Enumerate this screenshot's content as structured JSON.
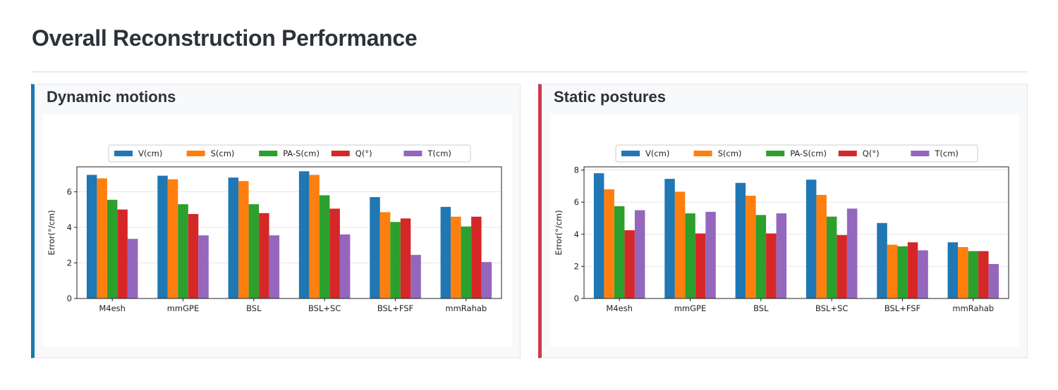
{
  "page": {
    "title": "Overall Reconstruction Performance"
  },
  "panels": [
    {
      "title": "Dynamic motions"
    },
    {
      "title": "Static postures"
    }
  ],
  "chart_data": [
    {
      "type": "bar",
      "categories": [
        "M4esh",
        "mmGPE",
        "BSL",
        "BSL+SC",
        "BSL+FSF",
        "mmRahab"
      ],
      "series": [
        {
          "name": "V(cm)",
          "color": "#1f77b4",
          "values": [
            6.95,
            6.9,
            6.8,
            7.15,
            5.7,
            5.15
          ]
        },
        {
          "name": "S(cm)",
          "color": "#ff7f0e",
          "values": [
            6.75,
            6.7,
            6.6,
            6.95,
            4.85,
            4.6
          ]
        },
        {
          "name": "PA-S(cm)",
          "color": "#2ca02c",
          "values": [
            5.55,
            5.3,
            5.3,
            5.8,
            4.3,
            4.05
          ]
        },
        {
          "name": "Q(°)",
          "color": "#d62728",
          "values": [
            5.0,
            4.75,
            4.8,
            5.05,
            4.5,
            4.6
          ]
        },
        {
          "name": "T(cm)",
          "color": "#9467bd",
          "values": [
            3.35,
            3.55,
            3.55,
            3.6,
            2.45,
            2.05
          ]
        }
      ],
      "ylabel": "Error(°/cm)",
      "xlabel": "",
      "ylim": [
        0,
        7.4
      ],
      "yticks": [
        0,
        2,
        4,
        6
      ],
      "grid": "horizontal",
      "legend": "top-center"
    },
    {
      "type": "bar",
      "categories": [
        "M4esh",
        "mmGPE",
        "BSL",
        "BSL+SC",
        "BSL+FSF",
        "mmRahab"
      ],
      "series": [
        {
          "name": "V(cm)",
          "color": "#1f77b4",
          "values": [
            7.8,
            7.45,
            7.2,
            7.4,
            4.7,
            3.5
          ]
        },
        {
          "name": "S(cm)",
          "color": "#ff7f0e",
          "values": [
            6.8,
            6.65,
            6.4,
            6.45,
            3.35,
            3.2
          ]
        },
        {
          "name": "PA-S(cm)",
          "color": "#2ca02c",
          "values": [
            5.75,
            5.3,
            5.2,
            5.1,
            3.25,
            2.95
          ]
        },
        {
          "name": "Q(°)",
          "color": "#d62728",
          "values": [
            4.25,
            4.05,
            4.05,
            3.95,
            3.5,
            2.95
          ]
        },
        {
          "name": "T(cm)",
          "color": "#9467bd",
          "values": [
            5.5,
            5.4,
            5.3,
            5.6,
            3.0,
            2.15
          ]
        }
      ],
      "ylabel": "Error(°/cm)",
      "xlabel": "",
      "ylim": [
        0,
        8.2
      ],
      "yticks": [
        0,
        2,
        4,
        6,
        8
      ],
      "grid": "horizontal",
      "legend": "top-center"
    }
  ]
}
